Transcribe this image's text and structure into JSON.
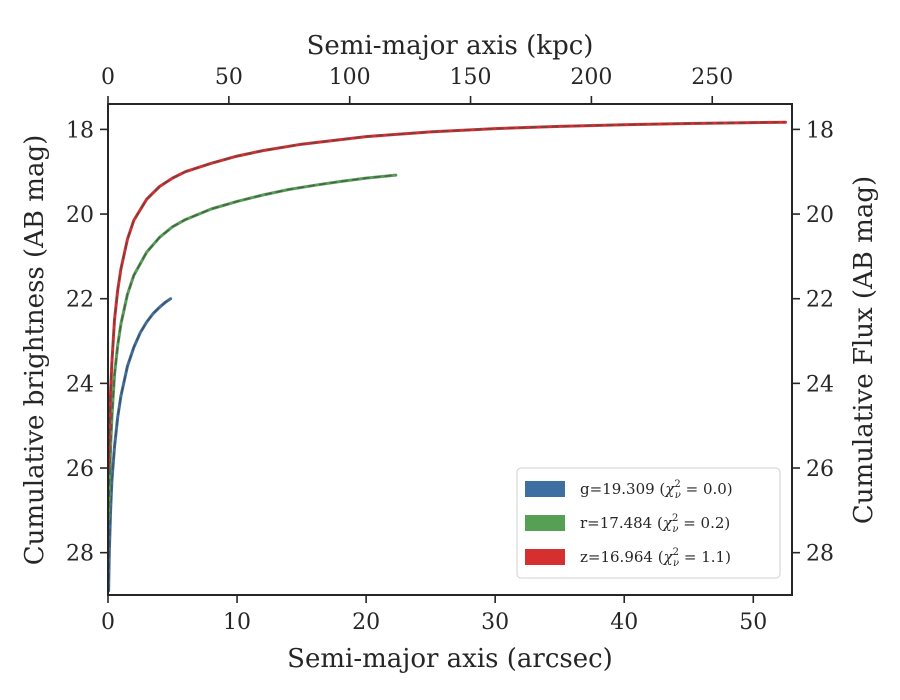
{
  "chart_data": {
    "type": "line",
    "xlabel": "Semi-major axis (arcsec)",
    "xlabel_top": "Semi-major axis (kpc)",
    "ylabel": "Cumulative brightness (AB mag)",
    "ylabel_right": "Cumulative Flux (AB mag)",
    "xlim": [
      0,
      53
    ],
    "xlim_top": [
      0,
      283
    ],
    "ylim": [
      29.0,
      17.4
    ],
    "y_inverted": true,
    "grid": false,
    "legend_position": "lower-right",
    "x_ticks": [
      0,
      10,
      20,
      30,
      40,
      50
    ],
    "x_tick_labels": [
      "0",
      "10",
      "20",
      "30",
      "40",
      "50"
    ],
    "x_top_ticks": [
      0,
      50,
      100,
      150,
      200,
      250
    ],
    "x_top_tick_labels": [
      "0",
      "50",
      "100",
      "150",
      "200",
      "250"
    ],
    "y_ticks": [
      18,
      20,
      22,
      24,
      26,
      28
    ],
    "y_tick_labels": [
      "18",
      "20",
      "22",
      "24",
      "26",
      "28"
    ],
    "series": [
      {
        "name": "g=19.309 (χ²ᵥ = 0.0)",
        "legend_prefix": "g=19.309 (",
        "legend_chi": "χ",
        "legend_sup": "2",
        "legend_sub": "ν",
        "legend_suffix": " = 0.0)",
        "color": "#3d6fa0",
        "x": [
          0.05,
          0.1,
          0.2,
          0.3,
          0.5,
          0.75,
          1.0,
          1.5,
          2.0,
          2.5,
          3.0,
          3.5,
          4.0,
          4.5,
          4.85
        ],
        "y": [
          28.9,
          28.0,
          27.0,
          26.3,
          25.5,
          24.8,
          24.3,
          23.6,
          23.15,
          22.8,
          22.55,
          22.35,
          22.2,
          22.07,
          22.0
        ]
      },
      {
        "name": "r=17.484 (χ²ᵥ = 0.2)",
        "legend_prefix": "r=17.484 (",
        "legend_chi": "χ",
        "legend_sup": "2",
        "legend_sub": "ν",
        "legend_suffix": " = 0.2)",
        "color": "#55a055",
        "x": [
          0.05,
          0.1,
          0.2,
          0.3,
          0.5,
          0.75,
          1.0,
          1.5,
          2.0,
          3.0,
          4.0,
          5.0,
          6.0,
          8.0,
          10.0,
          12.0,
          14.0,
          16.0,
          18.0,
          20.0,
          22.3
        ],
        "y": [
          27.2,
          26.5,
          25.5,
          24.8,
          23.8,
          23.1,
          22.6,
          21.9,
          21.45,
          20.9,
          20.55,
          20.3,
          20.13,
          19.88,
          19.7,
          19.55,
          19.42,
          19.32,
          19.23,
          19.15,
          19.08
        ]
      },
      {
        "name": "z=16.964 (χ²ᵥ = 1.1)",
        "legend_prefix": "z=16.964 (",
        "legend_chi": "χ",
        "legend_sup": "2",
        "legend_sub": "ν",
        "legend_suffix": " = 1.1)",
        "color": "#d62f2f",
        "x": [
          0.05,
          0.1,
          0.2,
          0.3,
          0.5,
          0.75,
          1.0,
          1.5,
          2.0,
          3.0,
          4.0,
          5.0,
          6.0,
          8.0,
          10.0,
          12.0,
          15.0,
          20.0,
          25.0,
          30.0,
          35.0,
          40.0,
          45.0,
          50.0,
          52.5
        ],
        "y": [
          26.0,
          25.2,
          24.2,
          23.5,
          22.5,
          21.8,
          21.3,
          20.6,
          20.15,
          19.65,
          19.35,
          19.15,
          19.0,
          18.8,
          18.63,
          18.5,
          18.35,
          18.17,
          18.06,
          17.98,
          17.93,
          17.89,
          17.86,
          17.84,
          17.83
        ]
      }
    ]
  }
}
